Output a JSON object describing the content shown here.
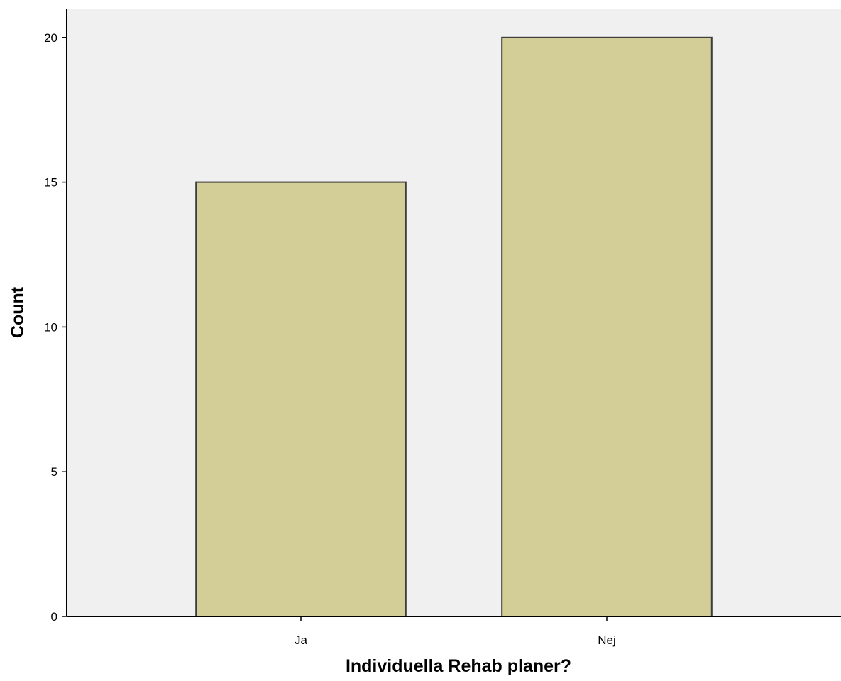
{
  "chart_data": {
    "type": "bar",
    "categories": [
      "Ja",
      "Nej"
    ],
    "values": [
      15,
      20
    ],
    "title": "",
    "xlabel": "Individuella Rehab planer?",
    "ylabel": "Count",
    "ylim": [
      0,
      21
    ],
    "yticks": [
      0,
      5,
      10,
      15,
      20
    ],
    "grid": false,
    "legend": "none",
    "colors": {
      "plot_background": "#f0f0f0",
      "bar_fill": "#d3cd97",
      "bar_stroke": "#3d3d3d",
      "axis": "#000000"
    }
  }
}
